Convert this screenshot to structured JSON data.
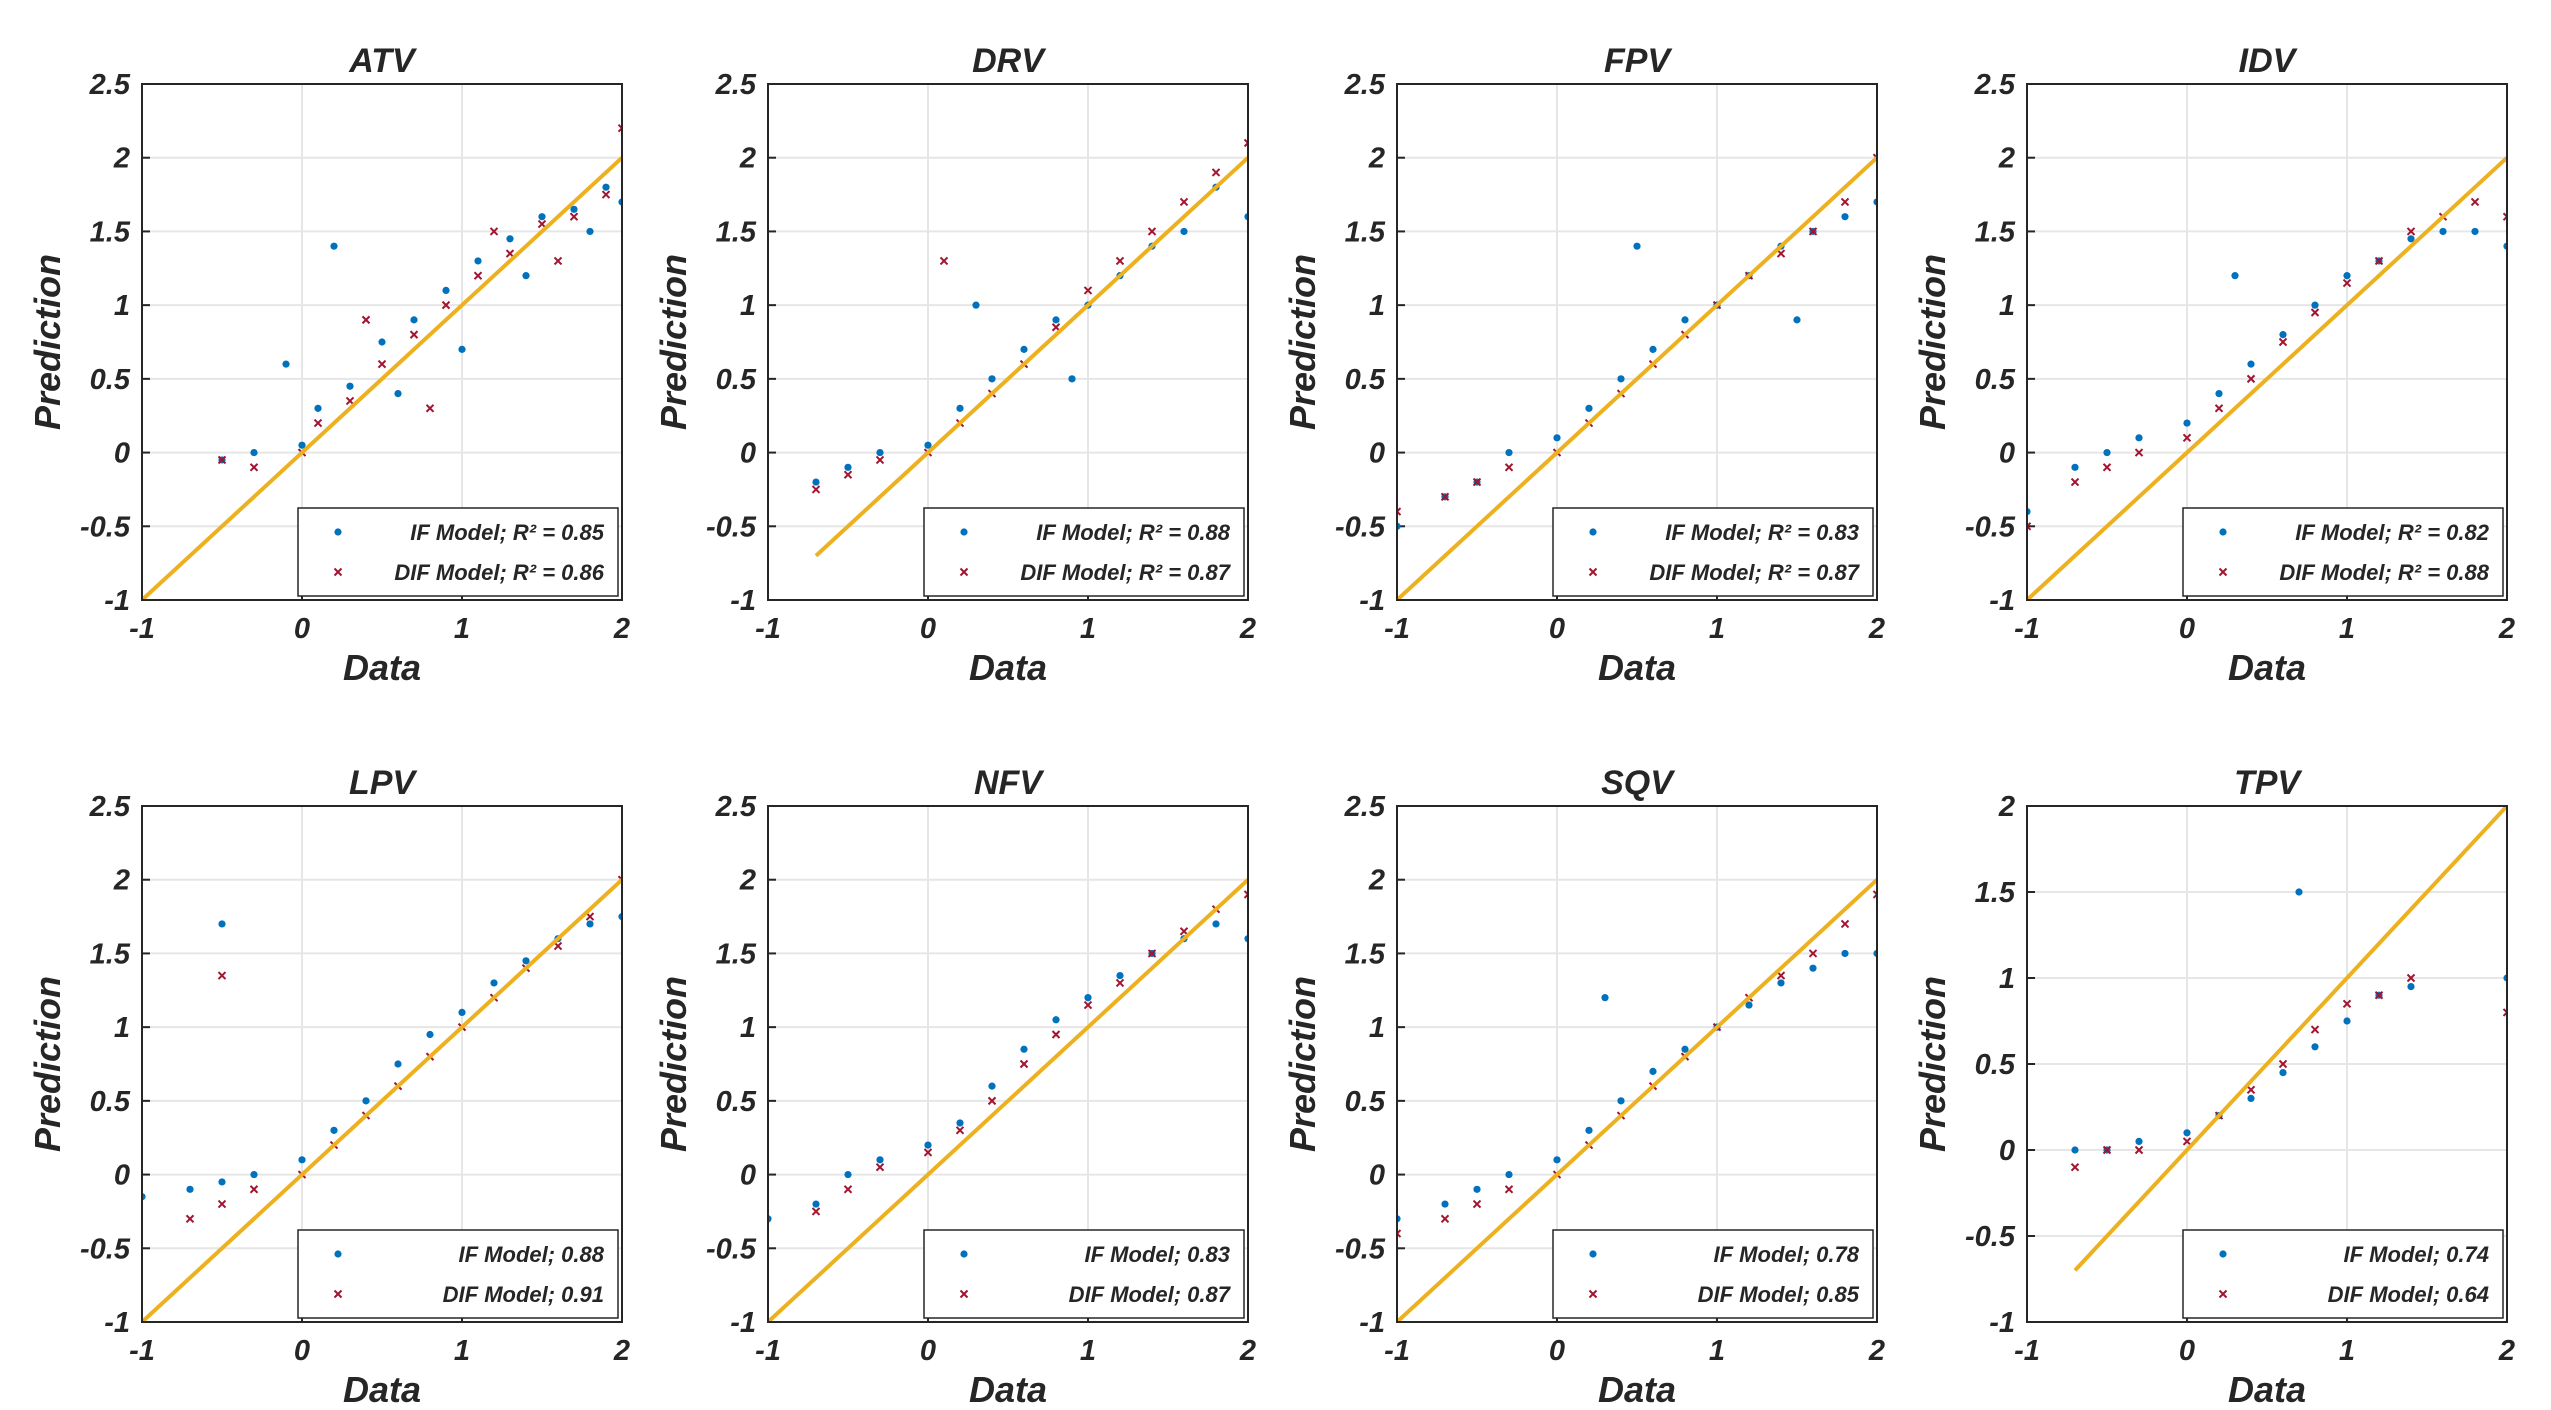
{
  "figure": {
    "colors": {
      "if_model": "#0072BD",
      "dif_model": "#A2142F",
      "identity_line": "#EDB120",
      "grid": "#E6E6E6",
      "axes": "#262626"
    },
    "marker_icons": {
      "if_model": "dot",
      "dif_model": "x-cross"
    }
  },
  "chart_data": [
    {
      "type": "scatter",
      "title": "ATV",
      "xlabel": "Data",
      "ylabel": "Prediction",
      "xlim": [
        -1,
        2
      ],
      "ylim": [
        -1,
        2.5
      ],
      "xticks": [
        "-1",
        "0",
        "1",
        "2"
      ],
      "yticks": [
        "-1",
        "-0.5",
        "0",
        "0.5",
        "1",
        "1.5",
        "2",
        "2.5"
      ],
      "grid": true,
      "legend_position": "bottom-right",
      "identity_line": {
        "x": [
          -1,
          2
        ],
        "y": [
          -1,
          2
        ]
      },
      "series": [
        {
          "name": "IF Model",
          "r2_label": "IF Model; R² = 0.85",
          "marker": "dot",
          "color": "#0072BD",
          "x": [
            -0.5,
            -0.3,
            0.0,
            0.1,
            0.3,
            0.5,
            0.7,
            0.9,
            1.1,
            1.3,
            1.5,
            1.7,
            1.9,
            2.0,
            0.2,
            0.6,
            1.0,
            1.4,
            1.8,
            -0.1
          ],
          "y": [
            -0.05,
            0.0,
            0.05,
            0.3,
            0.45,
            0.75,
            0.9,
            1.1,
            1.3,
            1.45,
            1.6,
            1.65,
            1.8,
            1.7,
            1.4,
            0.4,
            0.7,
            1.2,
            1.5,
            0.6
          ]
        },
        {
          "name": "DIF Model",
          "r2_label": "DIF Model; R² = 0.86",
          "marker": "x",
          "color": "#A2142F",
          "x": [
            -0.5,
            -0.3,
            0.0,
            0.1,
            0.3,
            0.5,
            0.7,
            0.9,
            1.1,
            1.3,
            1.5,
            1.7,
            1.9,
            2.0,
            0.4,
            0.8,
            1.2,
            1.6
          ],
          "y": [
            -0.05,
            -0.1,
            0.0,
            0.2,
            0.35,
            0.6,
            0.8,
            1.0,
            1.2,
            1.35,
            1.55,
            1.6,
            1.75,
            2.2,
            0.9,
            0.3,
            1.5,
            1.3
          ]
        }
      ]
    },
    {
      "type": "scatter",
      "title": "DRV",
      "xlabel": "Data",
      "ylabel": "Prediction",
      "xlim": [
        -1,
        2
      ],
      "ylim": [
        -1,
        2.5
      ],
      "xticks": [
        "-1",
        "0",
        "1",
        "2"
      ],
      "yticks": [
        "-1",
        "-0.5",
        "0",
        "0.5",
        "1",
        "1.5",
        "2",
        "2.5"
      ],
      "grid": true,
      "legend_position": "bottom-right",
      "identity_line": {
        "x": [
          -0.7,
          2
        ],
        "y": [
          -0.7,
          2
        ]
      },
      "series": [
        {
          "name": "IF Model",
          "r2_label": "IF Model; R² = 0.88",
          "marker": "dot",
          "color": "#0072BD",
          "x": [
            -0.7,
            -0.5,
            -0.3,
            0.0,
            0.2,
            0.4,
            0.6,
            0.8,
            1.0,
            1.2,
            1.4,
            1.6,
            1.8,
            2.0,
            0.3,
            0.9
          ],
          "y": [
            -0.2,
            -0.1,
            0.0,
            0.05,
            0.3,
            0.5,
            0.7,
            0.9,
            1.0,
            1.2,
            1.4,
            1.5,
            1.8,
            1.6,
            1.0,
            0.5
          ]
        },
        {
          "name": "DIF Model",
          "r2_label": "DIF Model; R² = 0.87",
          "marker": "x",
          "color": "#A2142F",
          "x": [
            -0.7,
            -0.5,
            -0.3,
            0.0,
            0.2,
            0.4,
            0.6,
            0.8,
            1.0,
            1.2,
            1.4,
            1.6,
            1.8,
            2.0,
            0.1
          ],
          "y": [
            -0.25,
            -0.15,
            -0.05,
            0.0,
            0.2,
            0.4,
            0.6,
            0.85,
            1.1,
            1.3,
            1.5,
            1.7,
            1.9,
            2.1,
            1.3
          ]
        }
      ]
    },
    {
      "type": "scatter",
      "title": "FPV",
      "xlabel": "Data",
      "ylabel": "Prediction",
      "xlim": [
        -1,
        2
      ],
      "ylim": [
        -1,
        2.5
      ],
      "xticks": [
        "-1",
        "0",
        "1",
        "2"
      ],
      "yticks": [
        "-1",
        "-0.5",
        "0",
        "0.5",
        "1",
        "1.5",
        "2",
        "2.5"
      ],
      "grid": true,
      "legend_position": "bottom-right",
      "identity_line": {
        "x": [
          -1,
          2
        ],
        "y": [
          -1,
          2
        ]
      },
      "series": [
        {
          "name": "IF Model",
          "r2_label": "IF Model; R² = 0.83",
          "marker": "dot",
          "color": "#0072BD",
          "x": [
            -1.0,
            -0.7,
            -0.5,
            -0.3,
            0.0,
            0.2,
            0.4,
            0.6,
            0.8,
            1.0,
            1.2,
            1.4,
            1.6,
            1.8,
            2.0,
            0.5,
            1.5
          ],
          "y": [
            -0.5,
            -0.3,
            -0.2,
            0.0,
            0.1,
            0.3,
            0.5,
            0.7,
            0.9,
            1.0,
            1.2,
            1.4,
            1.5,
            1.6,
            1.7,
            1.4,
            0.9
          ]
        },
        {
          "name": "DIF Model",
          "r2_label": "DIF Model; R² = 0.87",
          "marker": "x",
          "color": "#A2142F",
          "x": [
            -1.0,
            -0.7,
            -0.5,
            -0.3,
            0.0,
            0.2,
            0.4,
            0.6,
            0.8,
            1.0,
            1.2,
            1.4,
            1.6,
            1.8,
            2.0
          ],
          "y": [
            -0.4,
            -0.3,
            -0.2,
            -0.1,
            0.0,
            0.2,
            0.4,
            0.6,
            0.8,
            1.0,
            1.2,
            1.35,
            1.5,
            1.7,
            2.0
          ]
        }
      ]
    },
    {
      "type": "scatter",
      "title": "IDV",
      "xlabel": "Data",
      "ylabel": "Prediction",
      "xlim": [
        -1,
        2
      ],
      "ylim": [
        -1,
        2.5
      ],
      "xticks": [
        "-1",
        "0",
        "1",
        "2"
      ],
      "yticks": [
        "-1",
        "-0.5",
        "0",
        "0.5",
        "1",
        "1.5",
        "2",
        "2.5"
      ],
      "grid": true,
      "legend_position": "bottom-right",
      "identity_line": {
        "x": [
          -1,
          2
        ],
        "y": [
          -1,
          2
        ]
      },
      "series": [
        {
          "name": "IF Model",
          "r2_label": "IF Model; R² = 0.82",
          "marker": "dot",
          "color": "#0072BD",
          "x": [
            -1.0,
            -0.7,
            -0.5,
            -0.3,
            0.0,
            0.2,
            0.4,
            0.6,
            0.8,
            1.0,
            1.2,
            1.4,
            1.6,
            1.8,
            2.0,
            0.3
          ],
          "y": [
            -0.4,
            -0.1,
            0.0,
            0.1,
            0.2,
            0.4,
            0.6,
            0.8,
            1.0,
            1.2,
            1.3,
            1.45,
            1.5,
            1.5,
            1.4,
            1.2
          ]
        },
        {
          "name": "DIF Model",
          "r2_label": "DIF Model; R² = 0.88",
          "marker": "x",
          "color": "#A2142F",
          "x": [
            -1.0,
            -0.7,
            -0.5,
            -0.3,
            0.0,
            0.2,
            0.4,
            0.6,
            0.8,
            1.0,
            1.2,
            1.4,
            1.6,
            1.8,
            2.0
          ],
          "y": [
            -0.5,
            -0.2,
            -0.1,
            0.0,
            0.1,
            0.3,
            0.5,
            0.75,
            0.95,
            1.15,
            1.3,
            1.5,
            1.6,
            1.7,
            1.6
          ]
        }
      ]
    },
    {
      "type": "scatter",
      "title": "LPV",
      "xlabel": "Data",
      "ylabel": "Prediction",
      "xlim": [
        -1,
        2
      ],
      "ylim": [
        -1,
        2.5
      ],
      "xticks": [
        "-1",
        "0",
        "1",
        "2"
      ],
      "yticks": [
        "-1",
        "-0.5",
        "0",
        "0.5",
        "1",
        "1.5",
        "2",
        "2.5"
      ],
      "grid": true,
      "legend_position": "bottom-right",
      "identity_line": {
        "x": [
          -1,
          2
        ],
        "y": [
          -1,
          2
        ]
      },
      "series": [
        {
          "name": "IF Model",
          "r2_label": "IF Model; 0.88",
          "marker": "dot",
          "color": "#0072BD",
          "x": [
            -1.0,
            -0.7,
            -0.5,
            -0.3,
            0.0,
            0.2,
            0.4,
            0.6,
            0.8,
            1.0,
            1.2,
            1.4,
            1.6,
            1.8,
            2.0,
            -0.5
          ],
          "y": [
            -0.15,
            -0.1,
            -0.05,
            0.0,
            0.1,
            0.3,
            0.5,
            0.75,
            0.95,
            1.1,
            1.3,
            1.45,
            1.6,
            1.7,
            1.75,
            1.7
          ]
        },
        {
          "name": "DIF Model",
          "r2_label": "DIF Model; 0.91",
          "marker": "x",
          "color": "#A2142F",
          "x": [
            -0.7,
            -0.5,
            -0.3,
            0.0,
            0.2,
            0.4,
            0.6,
            0.8,
            1.0,
            1.2,
            1.4,
            1.6,
            1.8,
            2.0,
            -0.5
          ],
          "y": [
            -0.3,
            -0.2,
            -0.1,
            0.0,
            0.2,
            0.4,
            0.6,
            0.8,
            1.0,
            1.2,
            1.4,
            1.55,
            1.75,
            2.0,
            1.35
          ]
        }
      ]
    },
    {
      "type": "scatter",
      "title": "NFV",
      "xlabel": "Data",
      "ylabel": "Prediction",
      "xlim": [
        -1,
        2
      ],
      "ylim": [
        -1,
        2.5
      ],
      "xticks": [
        "-1",
        "0",
        "1",
        "2"
      ],
      "yticks": [
        "-1",
        "-0.5",
        "0",
        "0.5",
        "1",
        "1.5",
        "2",
        "2.5"
      ],
      "grid": true,
      "legend_position": "bottom-right",
      "identity_line": {
        "x": [
          -1,
          2
        ],
        "y": [
          -1,
          2
        ]
      },
      "series": [
        {
          "name": "IF Model",
          "r2_label": "IF Model; 0.83",
          "marker": "dot",
          "color": "#0072BD",
          "x": [
            -1.0,
            -0.7,
            -0.5,
            -0.3,
            0.0,
            0.2,
            0.4,
            0.6,
            0.8,
            1.0,
            1.2,
            1.4,
            1.6,
            1.8,
            2.0
          ],
          "y": [
            -0.3,
            -0.2,
            0.0,
            0.1,
            0.2,
            0.35,
            0.6,
            0.85,
            1.05,
            1.2,
            1.35,
            1.5,
            1.6,
            1.7,
            1.6
          ]
        },
        {
          "name": "DIF Model",
          "r2_label": "DIF Model; 0.87",
          "marker": "x",
          "color": "#A2142F",
          "x": [
            -0.7,
            -0.5,
            -0.3,
            0.0,
            0.2,
            0.4,
            0.6,
            0.8,
            1.0,
            1.2,
            1.4,
            1.6,
            1.8,
            2.0
          ],
          "y": [
            -0.25,
            -0.1,
            0.05,
            0.15,
            0.3,
            0.5,
            0.75,
            0.95,
            1.15,
            1.3,
            1.5,
            1.65,
            1.8,
            1.9
          ]
        }
      ]
    },
    {
      "type": "scatter",
      "title": "SQV",
      "xlabel": "Data",
      "ylabel": "Prediction",
      "xlim": [
        -1,
        2
      ],
      "ylim": [
        -1,
        2.5
      ],
      "xticks": [
        "-1",
        "0",
        "1",
        "2"
      ],
      "yticks": [
        "-1",
        "-0.5",
        "0",
        "0.5",
        "1",
        "1.5",
        "2",
        "2.5"
      ],
      "grid": true,
      "legend_position": "bottom-right",
      "identity_line": {
        "x": [
          -1,
          2
        ],
        "y": [
          -1,
          2
        ]
      },
      "series": [
        {
          "name": "IF Model",
          "r2_label": "IF Model; 0.78",
          "marker": "dot",
          "color": "#0072BD",
          "x": [
            -1.0,
            -0.7,
            -0.5,
            -0.3,
            0.0,
            0.2,
            0.4,
            0.6,
            0.8,
            1.0,
            1.2,
            1.4,
            1.6,
            1.8,
            2.0,
            0.3
          ],
          "y": [
            -0.3,
            -0.2,
            -0.1,
            0.0,
            0.1,
            0.3,
            0.5,
            0.7,
            0.85,
            1.0,
            1.15,
            1.3,
            1.4,
            1.5,
            1.5,
            1.2
          ]
        },
        {
          "name": "DIF Model",
          "r2_label": "DIF Model; 0.85",
          "marker": "x",
          "color": "#A2142F",
          "x": [
            -1.0,
            -0.7,
            -0.5,
            -0.3,
            0.0,
            0.2,
            0.4,
            0.6,
            0.8,
            1.0,
            1.2,
            1.4,
            1.6,
            1.8,
            2.0
          ],
          "y": [
            -0.4,
            -0.3,
            -0.2,
            -0.1,
            0.0,
            0.2,
            0.4,
            0.6,
            0.8,
            1.0,
            1.2,
            1.35,
            1.5,
            1.7,
            1.9
          ]
        }
      ]
    },
    {
      "type": "scatter",
      "title": "TPV",
      "xlabel": "Data",
      "ylabel": "Prediction",
      "xlim": [
        -1,
        2
      ],
      "ylim": [
        -1,
        2
      ],
      "xticks": [
        "-1",
        "0",
        "1",
        "2"
      ],
      "yticks": [
        "-1",
        "-0.5",
        "0",
        "0.5",
        "1",
        "1.5",
        "2"
      ],
      "grid": true,
      "legend_position": "bottom-right",
      "identity_line": {
        "x": [
          -0.7,
          2
        ],
        "y": [
          -0.7,
          2
        ]
      },
      "series": [
        {
          "name": "IF Model",
          "r2_label": "IF Model; 0.74",
          "marker": "dot",
          "color": "#0072BD",
          "x": [
            -0.7,
            -0.5,
            -0.3,
            0.0,
            0.2,
            0.4,
            0.6,
            0.8,
            1.0,
            1.2,
            1.4,
            2.0,
            0.7
          ],
          "y": [
            0.0,
            0.0,
            0.05,
            0.1,
            0.2,
            0.3,
            0.45,
            0.6,
            0.75,
            0.9,
            0.95,
            1.0,
            1.5
          ]
        },
        {
          "name": "DIF Model",
          "r2_label": "DIF Model; 0.64",
          "marker": "x",
          "color": "#A2142F",
          "x": [
            -0.7,
            -0.5,
            -0.3,
            0.0,
            0.2,
            0.4,
            0.6,
            0.8,
            1.0,
            1.2,
            1.4,
            2.0
          ],
          "y": [
            -0.1,
            0.0,
            0.0,
            0.05,
            0.2,
            0.35,
            0.5,
            0.7,
            0.85,
            0.9,
            1.0,
            0.8
          ]
        }
      ]
    }
  ]
}
